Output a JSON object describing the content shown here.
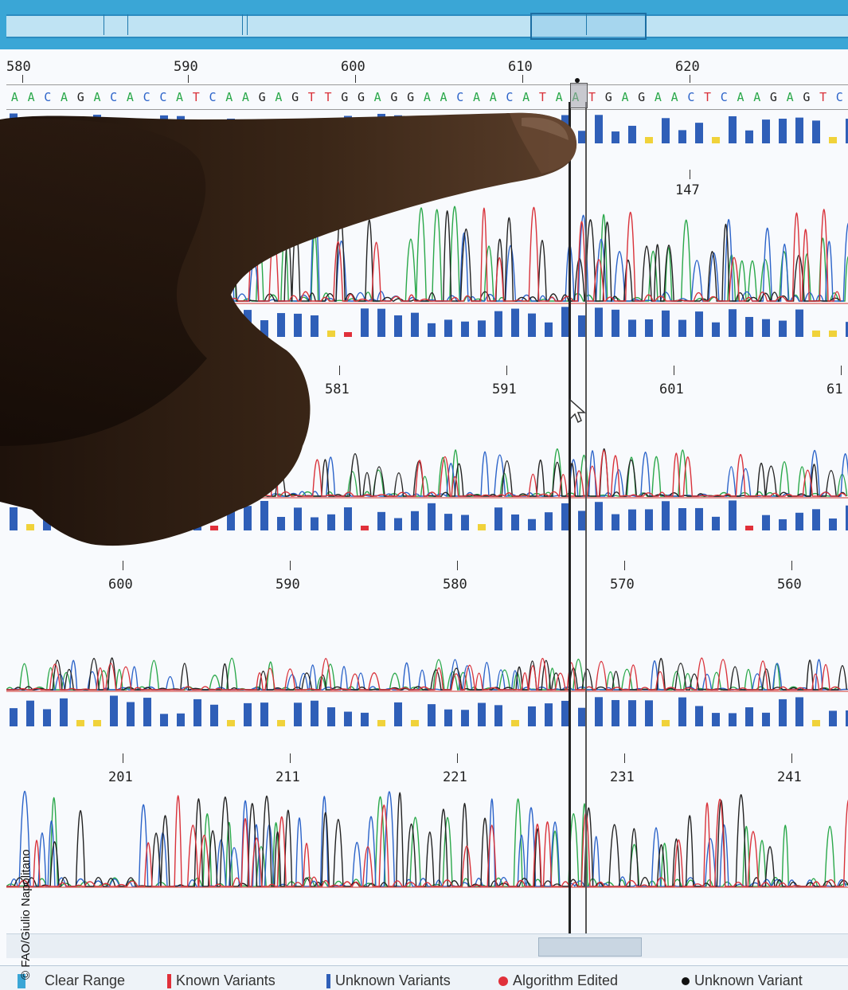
{
  "ruler": {
    "labels": [
      "580",
      "590",
      "600",
      "610",
      "620"
    ]
  },
  "sequence": {
    "bases": "AACAGACACCATCAAGAGTTGGAGGAACAACATAATGAGAACTCAAGAGTC"
  },
  "tracks": [
    {
      "labels": [
        "147"
      ]
    },
    {
      "labels": [
        "581",
        "591",
        "601",
        "61"
      ]
    },
    {
      "labels": [
        "600",
        "590",
        "580",
        "570",
        "560"
      ]
    },
    {
      "labels": [
        "201",
        "211",
        "221",
        "231",
        "241"
      ]
    }
  ],
  "legend": {
    "clear_range": "Clear Range",
    "known_variants": "Known Variants",
    "unknown_variants": "Unknown Variants",
    "algorithm_edited": "Algorithm Edited",
    "unknown_variant": "Unknown Variant"
  },
  "credit": "© FAO/Giulio Napolitano",
  "colors": {
    "A": "#2aa84a",
    "C": "#2b63c9",
    "G": "#222222",
    "T": "#d9323a",
    "bar_blue": "#2f5fb8",
    "bar_yellow": "#f0d23a",
    "bar_red": "#e0303a"
  }
}
